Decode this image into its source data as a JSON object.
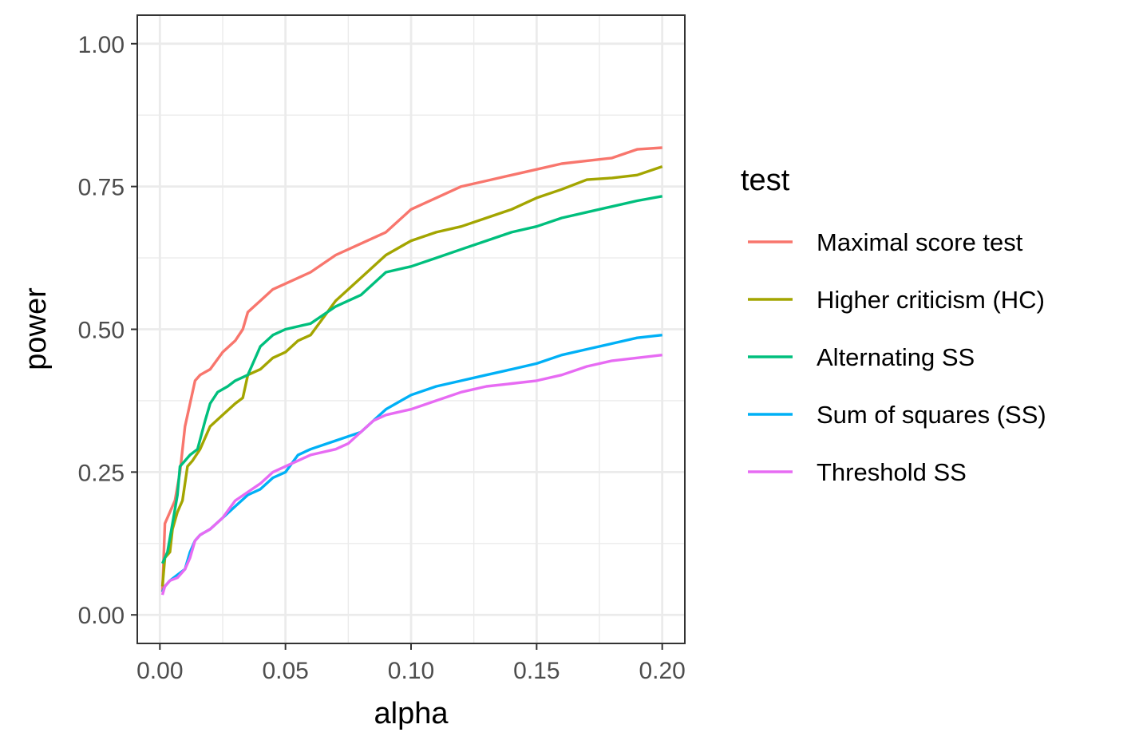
{
  "chart_data": {
    "type": "line",
    "xlabel": "alpha",
    "ylabel": "power",
    "xlim": [
      -0.009,
      0.209
    ],
    "ylim": [
      -0.05,
      1.05
    ],
    "x_ticks": [
      0.0,
      0.05,
      0.1,
      0.15,
      0.2
    ],
    "x_tick_labels": [
      "0.00",
      "0.05",
      "0.10",
      "0.15",
      "0.20"
    ],
    "y_ticks": [
      0.0,
      0.25,
      0.5,
      0.75,
      1.0
    ],
    "y_tick_labels": [
      "0.00",
      "0.25",
      "0.50",
      "0.75",
      "1.00"
    ],
    "grid": true,
    "legend_title": "test",
    "legend_position": "right",
    "series": [
      {
        "name": "Maximal score test",
        "color": "#F8766D",
        "points": [
          [
            0.001,
            0.04
          ],
          [
            0.002,
            0.16
          ],
          [
            0.004,
            0.18
          ],
          [
            0.006,
            0.2
          ],
          [
            0.008,
            0.25
          ],
          [
            0.01,
            0.33
          ],
          [
            0.012,
            0.37
          ],
          [
            0.014,
            0.41
          ],
          [
            0.016,
            0.42
          ],
          [
            0.02,
            0.43
          ],
          [
            0.025,
            0.46
          ],
          [
            0.03,
            0.48
          ],
          [
            0.033,
            0.5
          ],
          [
            0.035,
            0.53
          ],
          [
            0.04,
            0.55
          ],
          [
            0.045,
            0.57
          ],
          [
            0.05,
            0.58
          ],
          [
            0.06,
            0.6
          ],
          [
            0.07,
            0.63
          ],
          [
            0.08,
            0.65
          ],
          [
            0.09,
            0.67
          ],
          [
            0.1,
            0.71
          ],
          [
            0.11,
            0.73
          ],
          [
            0.12,
            0.75
          ],
          [
            0.13,
            0.76
          ],
          [
            0.14,
            0.77
          ],
          [
            0.15,
            0.78
          ],
          [
            0.16,
            0.79
          ],
          [
            0.17,
            0.795
          ],
          [
            0.18,
            0.8
          ],
          [
            0.19,
            0.815
          ],
          [
            0.2,
            0.818
          ]
        ]
      },
      {
        "name": "Higher criticism (HC)",
        "color": "#A3A500",
        "points": [
          [
            0.001,
            0.05
          ],
          [
            0.002,
            0.1
          ],
          [
            0.004,
            0.11
          ],
          [
            0.005,
            0.15
          ],
          [
            0.007,
            0.18
          ],
          [
            0.009,
            0.2
          ],
          [
            0.011,
            0.26
          ],
          [
            0.013,
            0.27
          ],
          [
            0.016,
            0.29
          ],
          [
            0.02,
            0.33
          ],
          [
            0.025,
            0.35
          ],
          [
            0.03,
            0.37
          ],
          [
            0.033,
            0.38
          ],
          [
            0.035,
            0.42
          ],
          [
            0.04,
            0.43
          ],
          [
            0.045,
            0.45
          ],
          [
            0.05,
            0.46
          ],
          [
            0.055,
            0.48
          ],
          [
            0.06,
            0.49
          ],
          [
            0.065,
            0.52
          ],
          [
            0.07,
            0.55
          ],
          [
            0.08,
            0.59
          ],
          [
            0.09,
            0.63
          ],
          [
            0.1,
            0.655
          ],
          [
            0.11,
            0.67
          ],
          [
            0.12,
            0.68
          ],
          [
            0.13,
            0.695
          ],
          [
            0.14,
            0.71
          ],
          [
            0.15,
            0.73
          ],
          [
            0.16,
            0.745
          ],
          [
            0.17,
            0.762
          ],
          [
            0.18,
            0.765
          ],
          [
            0.19,
            0.77
          ],
          [
            0.2,
            0.785
          ]
        ]
      },
      {
        "name": "Alternating SS",
        "color": "#00BF7D",
        "points": [
          [
            0.001,
            0.09
          ],
          [
            0.003,
            0.11
          ],
          [
            0.005,
            0.16
          ],
          [
            0.007,
            0.21
          ],
          [
            0.008,
            0.26
          ],
          [
            0.01,
            0.27
          ],
          [
            0.012,
            0.28
          ],
          [
            0.015,
            0.29
          ],
          [
            0.018,
            0.34
          ],
          [
            0.02,
            0.37
          ],
          [
            0.023,
            0.39
          ],
          [
            0.027,
            0.4
          ],
          [
            0.03,
            0.41
          ],
          [
            0.035,
            0.42
          ],
          [
            0.04,
            0.47
          ],
          [
            0.045,
            0.49
          ],
          [
            0.05,
            0.5
          ],
          [
            0.06,
            0.51
          ],
          [
            0.07,
            0.54
          ],
          [
            0.08,
            0.56
          ],
          [
            0.09,
            0.6
          ],
          [
            0.1,
            0.61
          ],
          [
            0.11,
            0.625
          ],
          [
            0.12,
            0.64
          ],
          [
            0.13,
            0.655
          ],
          [
            0.14,
            0.67
          ],
          [
            0.15,
            0.68
          ],
          [
            0.16,
            0.695
          ],
          [
            0.17,
            0.705
          ],
          [
            0.18,
            0.715
          ],
          [
            0.19,
            0.725
          ],
          [
            0.2,
            0.733
          ]
        ]
      },
      {
        "name": "Sum of squares (SS)",
        "color": "#00B0F6",
        "points": [
          [
            0.001,
            0.04
          ],
          [
            0.002,
            0.05
          ],
          [
            0.004,
            0.06
          ],
          [
            0.007,
            0.07
          ],
          [
            0.01,
            0.08
          ],
          [
            0.012,
            0.11
          ],
          [
            0.014,
            0.13
          ],
          [
            0.016,
            0.14
          ],
          [
            0.02,
            0.15
          ],
          [
            0.025,
            0.17
          ],
          [
            0.03,
            0.19
          ],
          [
            0.035,
            0.21
          ],
          [
            0.04,
            0.22
          ],
          [
            0.045,
            0.24
          ],
          [
            0.05,
            0.25
          ],
          [
            0.055,
            0.28
          ],
          [
            0.06,
            0.29
          ],
          [
            0.07,
            0.305
          ],
          [
            0.08,
            0.32
          ],
          [
            0.085,
            0.34
          ],
          [
            0.09,
            0.36
          ],
          [
            0.1,
            0.385
          ],
          [
            0.11,
            0.4
          ],
          [
            0.12,
            0.41
          ],
          [
            0.13,
            0.42
          ],
          [
            0.14,
            0.43
          ],
          [
            0.15,
            0.44
          ],
          [
            0.16,
            0.455
          ],
          [
            0.17,
            0.465
          ],
          [
            0.18,
            0.475
          ],
          [
            0.19,
            0.485
          ],
          [
            0.2,
            0.49
          ]
        ]
      },
      {
        "name": "Threshold SS",
        "color": "#E76BF3",
        "points": [
          [
            0.001,
            0.035
          ],
          [
            0.002,
            0.05
          ],
          [
            0.004,
            0.06
          ],
          [
            0.007,
            0.065
          ],
          [
            0.01,
            0.08
          ],
          [
            0.012,
            0.1
          ],
          [
            0.014,
            0.13
          ],
          [
            0.016,
            0.14
          ],
          [
            0.02,
            0.15
          ],
          [
            0.025,
            0.17
          ],
          [
            0.03,
            0.2
          ],
          [
            0.035,
            0.215
          ],
          [
            0.04,
            0.23
          ],
          [
            0.045,
            0.25
          ],
          [
            0.05,
            0.26
          ],
          [
            0.055,
            0.27
          ],
          [
            0.06,
            0.28
          ],
          [
            0.07,
            0.29
          ],
          [
            0.075,
            0.3
          ],
          [
            0.08,
            0.32
          ],
          [
            0.085,
            0.34
          ],
          [
            0.09,
            0.35
          ],
          [
            0.1,
            0.36
          ],
          [
            0.11,
            0.375
          ],
          [
            0.12,
            0.39
          ],
          [
            0.13,
            0.4
          ],
          [
            0.14,
            0.405
          ],
          [
            0.15,
            0.41
          ],
          [
            0.16,
            0.42
          ],
          [
            0.17,
            0.435
          ],
          [
            0.18,
            0.445
          ],
          [
            0.19,
            0.45
          ],
          [
            0.2,
            0.455
          ]
        ]
      }
    ]
  }
}
